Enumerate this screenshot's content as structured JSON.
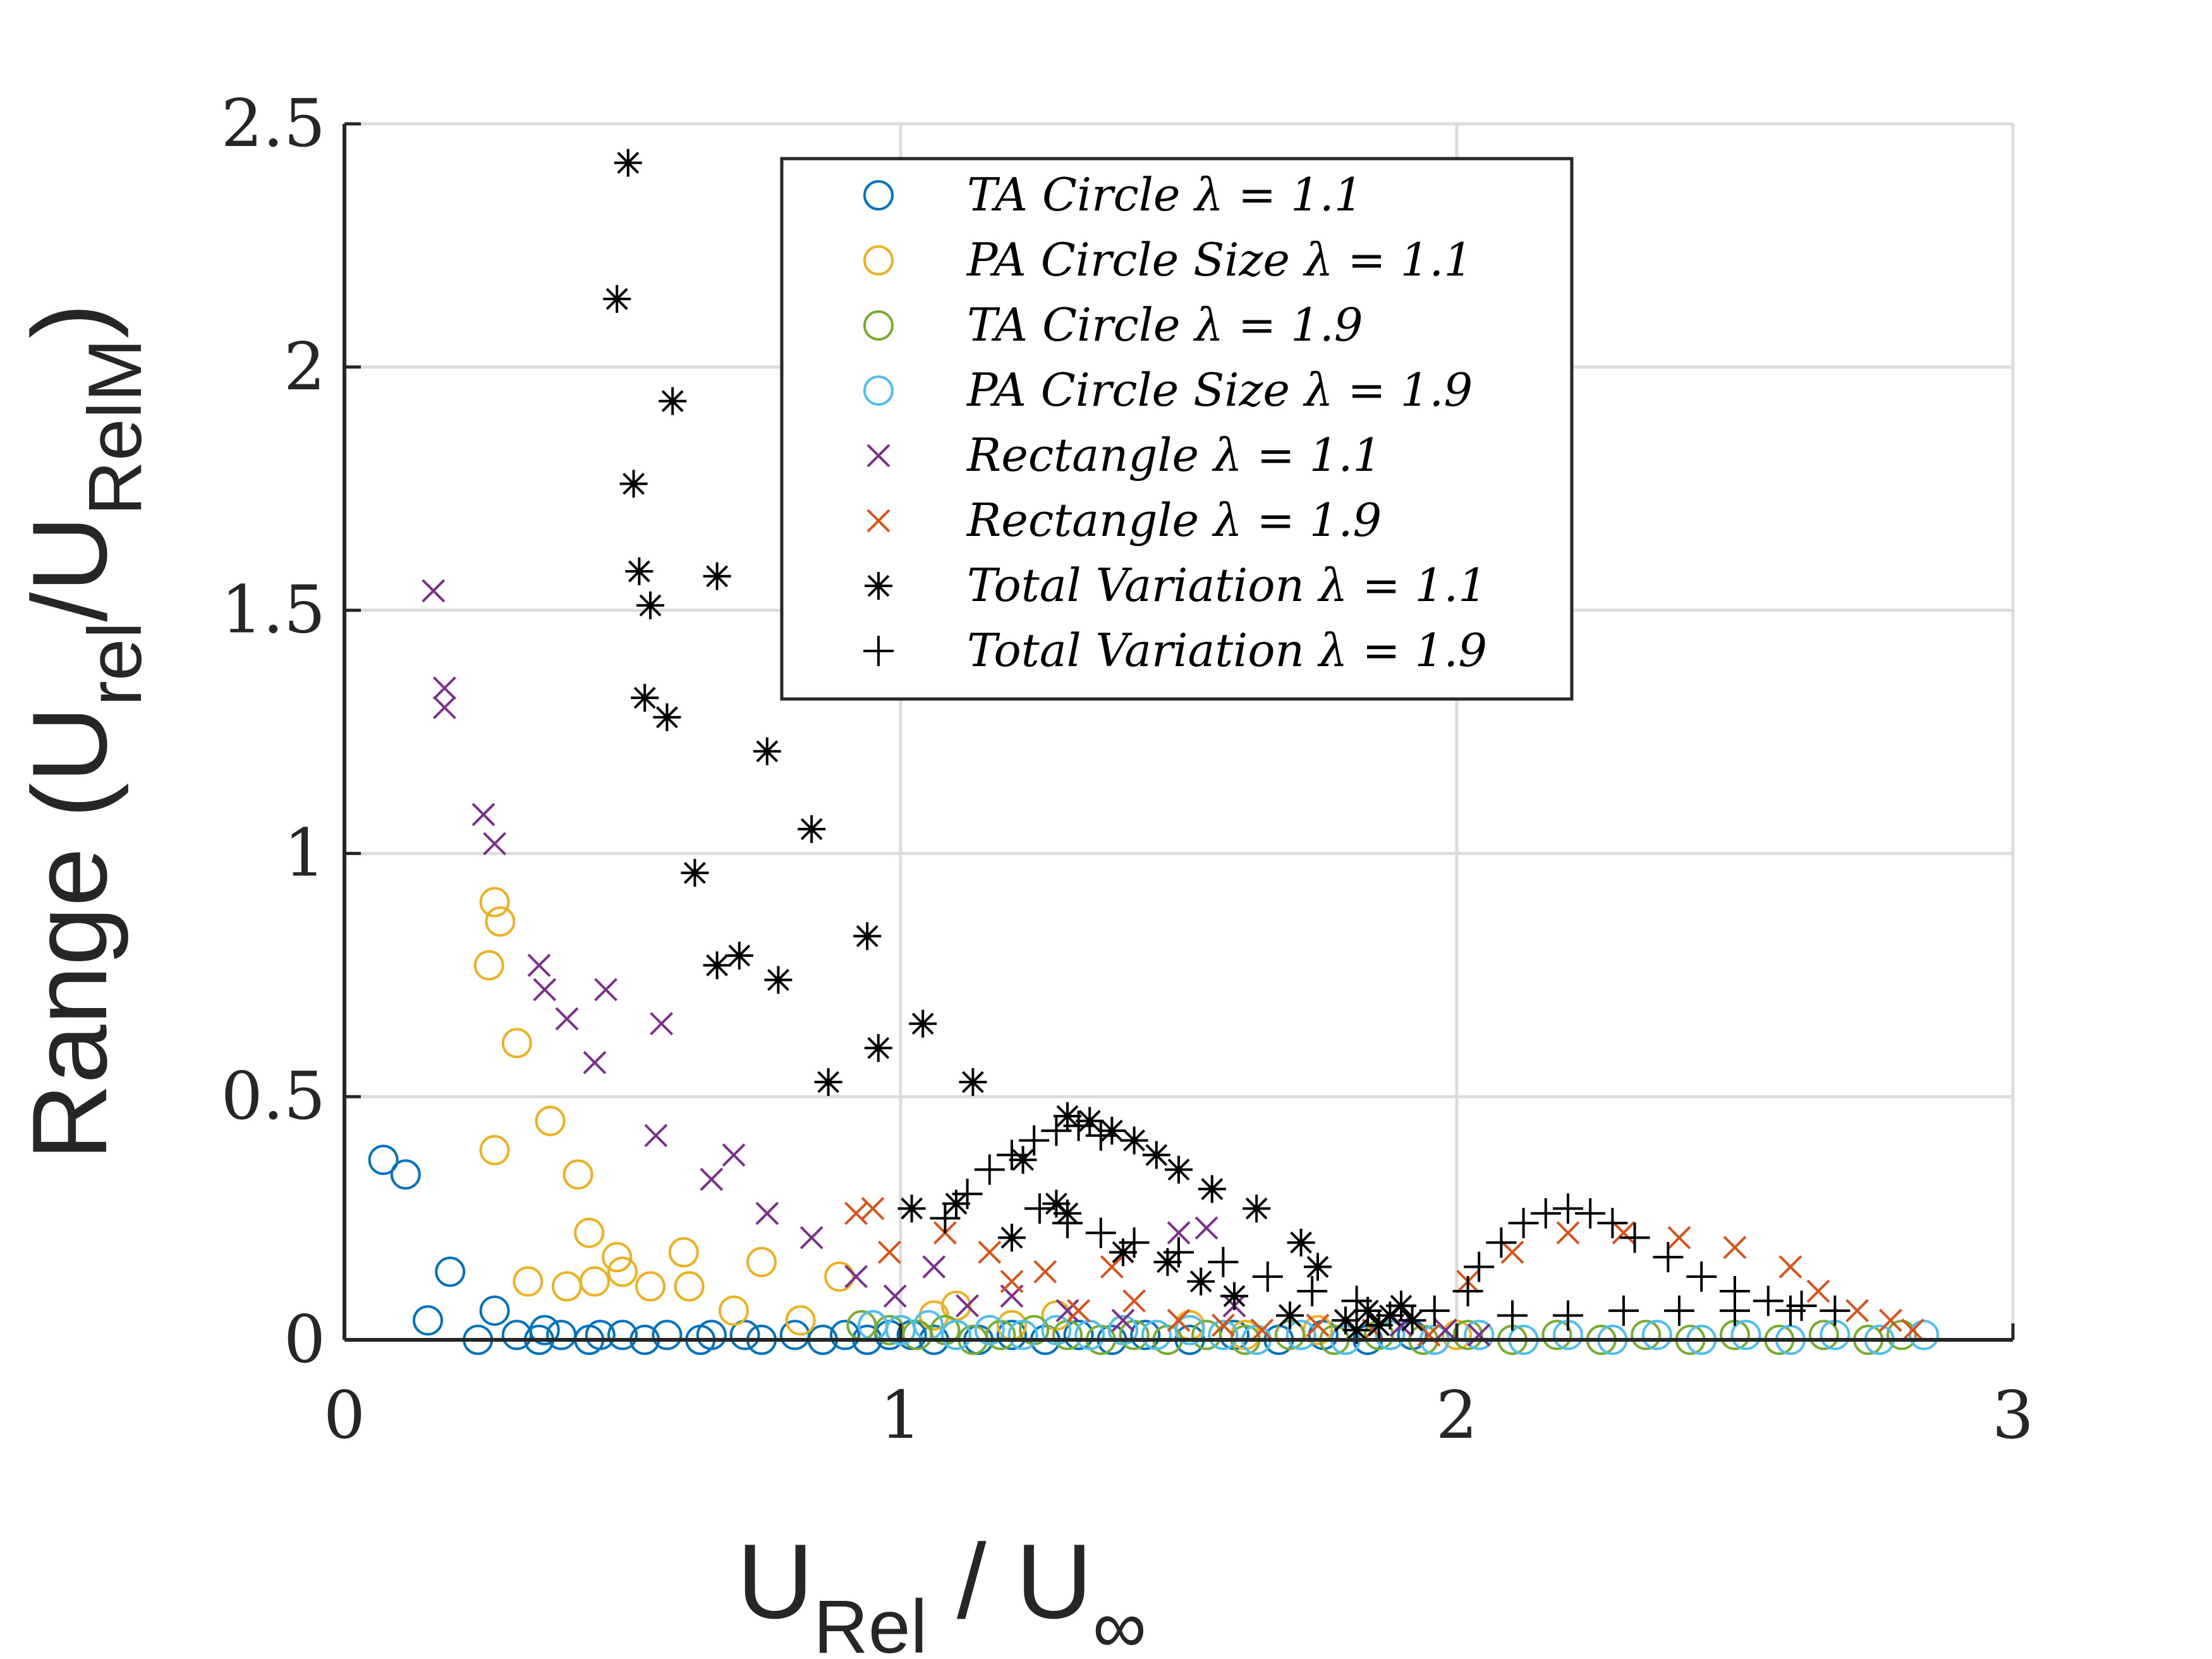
{
  "chart_data": {
    "type": "scatter",
    "xlim": [
      0,
      3
    ],
    "ylim": [
      0,
      2.5
    ],
    "xticks": [
      0,
      1,
      2,
      3
    ],
    "xtick_labels": [
      "0",
      "1",
      "2",
      "3"
    ],
    "yticks": [
      0,
      0.5,
      1,
      1.5,
      2,
      2.5
    ],
    "ytick_labels": [
      "0",
      "0.5",
      "1",
      "1.5",
      "2",
      "2.5"
    ],
    "xlabel": {
      "main": "U",
      "sub": "Rel",
      "mid": " / U",
      "sub2": "∞"
    },
    "ylabel": {
      "pre": "Range (U",
      "sub": "rel",
      "mid": "/U",
      "sub2": "RelM",
      "post": ")"
    },
    "grid": true,
    "legend_position": "top-right",
    "series": [
      {
        "name": "TA Circle λ  = 1.1",
        "marker": "circle",
        "color": "#0072BD",
        "points": [
          [
            0.07,
            0.37
          ],
          [
            0.11,
            0.34
          ],
          [
            0.15,
            0.04
          ],
          [
            0.19,
            0.14
          ],
          [
            0.24,
            0.0
          ],
          [
            0.27,
            0.06
          ],
          [
            0.31,
            0.01
          ],
          [
            0.35,
            0.0
          ],
          [
            0.36,
            0.02
          ],
          [
            0.39,
            0.01
          ],
          [
            0.44,
            0.0
          ],
          [
            0.46,
            0.01
          ],
          [
            0.5,
            0.01
          ],
          [
            0.54,
            0.0
          ],
          [
            0.58,
            0.01
          ],
          [
            0.64,
            0.0
          ],
          [
            0.66,
            0.01
          ],
          [
            0.72,
            0.01
          ],
          [
            0.75,
            0.0
          ],
          [
            0.81,
            0.01
          ],
          [
            0.86,
            0.0
          ],
          [
            0.9,
            0.01
          ],
          [
            0.94,
            0.0
          ],
          [
            0.98,
            0.01
          ],
          [
            1.02,
            0.01
          ],
          [
            1.06,
            0.0
          ],
          [
            1.1,
            0.01
          ],
          [
            1.14,
            0.0
          ],
          [
            1.2,
            0.01
          ],
          [
            1.26,
            0.0
          ],
          [
            1.32,
            0.01
          ],
          [
            1.38,
            0.0
          ],
          [
            1.44,
            0.01
          ],
          [
            1.52,
            0.0
          ],
          [
            1.6,
            0.01
          ],
          [
            1.68,
            0.0
          ],
          [
            1.76,
            0.01
          ],
          [
            1.84,
            0.0
          ],
          [
            1.92,
            0.01
          ]
        ]
      },
      {
        "name": "PA Circle Size λ  = 1.1",
        "marker": "circle",
        "color": "#EDB120",
        "points": [
          [
            0.26,
            0.77
          ],
          [
            0.27,
            0.9
          ],
          [
            0.28,
            0.86
          ],
          [
            0.27,
            0.39
          ],
          [
            0.31,
            0.61
          ],
          [
            0.33,
            0.12
          ],
          [
            0.37,
            0.45
          ],
          [
            0.4,
            0.11
          ],
          [
            0.42,
            0.34
          ],
          [
            0.44,
            0.22
          ],
          [
            0.45,
            0.12
          ],
          [
            0.49,
            0.17
          ],
          [
            0.5,
            0.14
          ],
          [
            0.55,
            0.11
          ],
          [
            0.61,
            0.18
          ],
          [
            0.62,
            0.11
          ],
          [
            0.7,
            0.06
          ],
          [
            0.75,
            0.16
          ],
          [
            0.82,
            0.04
          ],
          [
            0.89,
            0.13
          ],
          [
            0.95,
            0.03
          ],
          [
            1.0,
            0.02
          ],
          [
            1.06,
            0.05
          ],
          [
            1.1,
            0.07
          ],
          [
            1.2,
            0.03
          ],
          [
            1.28,
            0.05
          ],
          [
            1.4,
            0.02
          ],
          [
            1.52,
            0.03
          ],
          [
            1.62,
            0.01
          ],
          [
            1.75,
            0.02
          ],
          [
            1.88,
            0.01
          ],
          [
            2.0,
            0.01
          ]
        ]
      },
      {
        "name": "TA Circle λ  = 1.9",
        "marker": "circle",
        "color": "#77AC30",
        "points": [
          [
            0.93,
            0.03
          ],
          [
            0.98,
            0.02
          ],
          [
            1.03,
            0.01
          ],
          [
            1.08,
            0.02
          ],
          [
            1.13,
            0.0
          ],
          [
            1.18,
            0.01
          ],
          [
            1.24,
            0.02
          ],
          [
            1.3,
            0.01
          ],
          [
            1.36,
            0.0
          ],
          [
            1.42,
            0.01
          ],
          [
            1.48,
            0.0
          ],
          [
            1.55,
            0.01
          ],
          [
            1.62,
            0.0
          ],
          [
            1.7,
            0.01
          ],
          [
            1.78,
            0.0
          ],
          [
            1.86,
            0.01
          ],
          [
            1.94,
            0.0
          ],
          [
            2.02,
            0.01
          ],
          [
            2.1,
            0.0
          ],
          [
            2.18,
            0.01
          ],
          [
            2.26,
            0.0
          ],
          [
            2.34,
            0.01
          ],
          [
            2.42,
            0.0
          ],
          [
            2.5,
            0.01
          ],
          [
            2.58,
            0.0
          ],
          [
            2.66,
            0.01
          ],
          [
            2.74,
            0.0
          ],
          [
            2.8,
            0.01
          ]
        ]
      },
      {
        "name": "PA Circle Size λ  = 1.9",
        "marker": "circle",
        "color": "#4DBEEE",
        "points": [
          [
            0.95,
            0.03
          ],
          [
            1.0,
            0.02
          ],
          [
            1.05,
            0.03
          ],
          [
            1.1,
            0.01
          ],
          [
            1.16,
            0.02
          ],
          [
            1.22,
            0.01
          ],
          [
            1.28,
            0.02
          ],
          [
            1.34,
            0.01
          ],
          [
            1.4,
            0.02
          ],
          [
            1.46,
            0.01
          ],
          [
            1.52,
            0.02
          ],
          [
            1.58,
            0.01
          ],
          [
            1.64,
            0.0
          ],
          [
            1.72,
            0.01
          ],
          [
            1.8,
            0.0
          ],
          [
            1.88,
            0.01
          ],
          [
            1.96,
            0.0
          ],
          [
            2.04,
            0.01
          ],
          [
            2.12,
            0.0
          ],
          [
            2.2,
            0.01
          ],
          [
            2.28,
            0.0
          ],
          [
            2.36,
            0.01
          ],
          [
            2.44,
            0.0
          ],
          [
            2.52,
            0.01
          ],
          [
            2.6,
            0.0
          ],
          [
            2.68,
            0.01
          ],
          [
            2.76,
            0.0
          ],
          [
            2.84,
            0.01
          ]
        ]
      },
      {
        "name": "Rectangle λ  = 1.1",
        "marker": "x",
        "color": "#7E2F8E",
        "points": [
          [
            0.16,
            1.54
          ],
          [
            0.18,
            1.34
          ],
          [
            0.18,
            1.3
          ],
          [
            0.25,
            1.08
          ],
          [
            0.27,
            1.02
          ],
          [
            0.35,
            0.77
          ],
          [
            0.36,
            0.72
          ],
          [
            0.4,
            0.66
          ],
          [
            0.45,
            0.57
          ],
          [
            0.47,
            0.72
          ],
          [
            0.56,
            0.42
          ],
          [
            0.57,
            0.65
          ],
          [
            0.66,
            0.33
          ],
          [
            0.7,
            0.38
          ],
          [
            0.76,
            0.26
          ],
          [
            0.84,
            0.21
          ],
          [
            0.92,
            0.13
          ],
          [
            0.99,
            0.09
          ],
          [
            1.06,
            0.15
          ],
          [
            1.12,
            0.07
          ],
          [
            1.2,
            0.09
          ],
          [
            1.3,
            0.06
          ],
          [
            1.4,
            0.04
          ],
          [
            1.5,
            0.22
          ],
          [
            1.55,
            0.23
          ],
          [
            1.6,
            0.07
          ],
          [
            1.7,
            0.05
          ],
          [
            1.8,
            0.04
          ],
          [
            1.9,
            0.03
          ],
          [
            1.98,
            0.02
          ],
          [
            2.04,
            0.01
          ]
        ]
      },
      {
        "name": "Rectangle λ  = 1.9",
        "marker": "x",
        "color": "#D95319",
        "points": [
          [
            0.92,
            0.26
          ],
          [
            0.95,
            0.27
          ],
          [
            0.98,
            0.18
          ],
          [
            1.08,
            0.22
          ],
          [
            1.16,
            0.18
          ],
          [
            1.2,
            0.12
          ],
          [
            1.26,
            0.14
          ],
          [
            1.32,
            0.06
          ],
          [
            1.38,
            0.15
          ],
          [
            1.42,
            0.08
          ],
          [
            1.5,
            0.04
          ],
          [
            1.58,
            0.03
          ],
          [
            1.65,
            0.02
          ],
          [
            1.75,
            0.03
          ],
          [
            1.85,
            0.02
          ],
          [
            1.95,
            0.01
          ],
          [
            2.02,
            0.12
          ],
          [
            2.1,
            0.18
          ],
          [
            2.2,
            0.22
          ],
          [
            2.3,
            0.22
          ],
          [
            2.4,
            0.21
          ],
          [
            2.5,
            0.19
          ],
          [
            2.6,
            0.15
          ],
          [
            2.65,
            0.1
          ],
          [
            2.72,
            0.06
          ],
          [
            2.78,
            0.04
          ],
          [
            2.82,
            0.02
          ]
        ]
      },
      {
        "name": "Total Variation λ  = 1.1",
        "marker": "asterisk",
        "color": "#000000",
        "points": [
          [
            0.51,
            2.42
          ],
          [
            0.49,
            2.14
          ],
          [
            0.59,
            1.93
          ],
          [
            0.52,
            1.76
          ],
          [
            0.53,
            1.58
          ],
          [
            0.67,
            1.57
          ],
          [
            0.55,
            1.51
          ],
          [
            0.54,
            1.32
          ],
          [
            0.58,
            1.28
          ],
          [
            0.76,
            1.21
          ],
          [
            0.84,
            1.05
          ],
          [
            0.63,
            0.96
          ],
          [
            0.94,
            0.83
          ],
          [
            0.71,
            0.79
          ],
          [
            0.67,
            0.77
          ],
          [
            0.78,
            0.74
          ],
          [
            1.04,
            0.65
          ],
          [
            0.96,
            0.6
          ],
          [
            0.87,
            0.53
          ],
          [
            1.13,
            0.53
          ],
          [
            1.3,
            0.46
          ],
          [
            1.34,
            0.45
          ],
          [
            1.38,
            0.43
          ],
          [
            1.42,
            0.41
          ],
          [
            1.46,
            0.38
          ],
          [
            1.5,
            0.35
          ],
          [
            1.56,
            0.31
          ],
          [
            1.64,
            0.27
          ],
          [
            1.22,
            0.37
          ],
          [
            1.28,
            0.28
          ],
          [
            1.2,
            0.21
          ],
          [
            1.1,
            0.28
          ],
          [
            1.02,
            0.27
          ],
          [
            1.3,
            0.26
          ],
          [
            1.4,
            0.18
          ],
          [
            1.48,
            0.16
          ],
          [
            1.54,
            0.12
          ],
          [
            1.6,
            0.09
          ],
          [
            1.72,
            0.2
          ],
          [
            1.75,
            0.15
          ],
          [
            1.7,
            0.05
          ],
          [
            1.8,
            0.04
          ],
          [
            1.84,
            0.06
          ],
          [
            1.88,
            0.05
          ],
          [
            1.9,
            0.07
          ],
          [
            1.86,
            0.03
          ],
          [
            1.92,
            0.04
          ],
          [
            1.82,
            0.02
          ]
        ]
      },
      {
        "name": "Total Variation λ  = 1.9",
        "marker": "plus",
        "color": "#000000",
        "points": [
          [
            1.08,
            0.25
          ],
          [
            1.12,
            0.3
          ],
          [
            1.16,
            0.35
          ],
          [
            1.2,
            0.38
          ],
          [
            1.24,
            0.41
          ],
          [
            1.28,
            0.43
          ],
          [
            1.32,
            0.44
          ],
          [
            1.36,
            0.42
          ],
          [
            1.25,
            0.27
          ],
          [
            1.3,
            0.24
          ],
          [
            1.36,
            0.22
          ],
          [
            1.42,
            0.2
          ],
          [
            1.5,
            0.18
          ],
          [
            1.58,
            0.16
          ],
          [
            1.66,
            0.13
          ],
          [
            1.74,
            0.1
          ],
          [
            1.82,
            0.08
          ],
          [
            1.9,
            0.07
          ],
          [
            1.96,
            0.06
          ],
          [
            2.02,
            0.1
          ],
          [
            2.04,
            0.15
          ],
          [
            2.08,
            0.2
          ],
          [
            2.12,
            0.24
          ],
          [
            2.16,
            0.26
          ],
          [
            2.2,
            0.27
          ],
          [
            2.24,
            0.26
          ],
          [
            2.28,
            0.24
          ],
          [
            2.32,
            0.21
          ],
          [
            2.38,
            0.17
          ],
          [
            2.44,
            0.13
          ],
          [
            2.5,
            0.1
          ],
          [
            2.56,
            0.08
          ],
          [
            2.62,
            0.07
          ],
          [
            2.1,
            0.05
          ],
          [
            2.2,
            0.05
          ],
          [
            2.3,
            0.06
          ],
          [
            2.4,
            0.06
          ],
          [
            2.5,
            0.06
          ],
          [
            2.6,
            0.06
          ],
          [
            2.68,
            0.06
          ]
        ]
      }
    ]
  }
}
